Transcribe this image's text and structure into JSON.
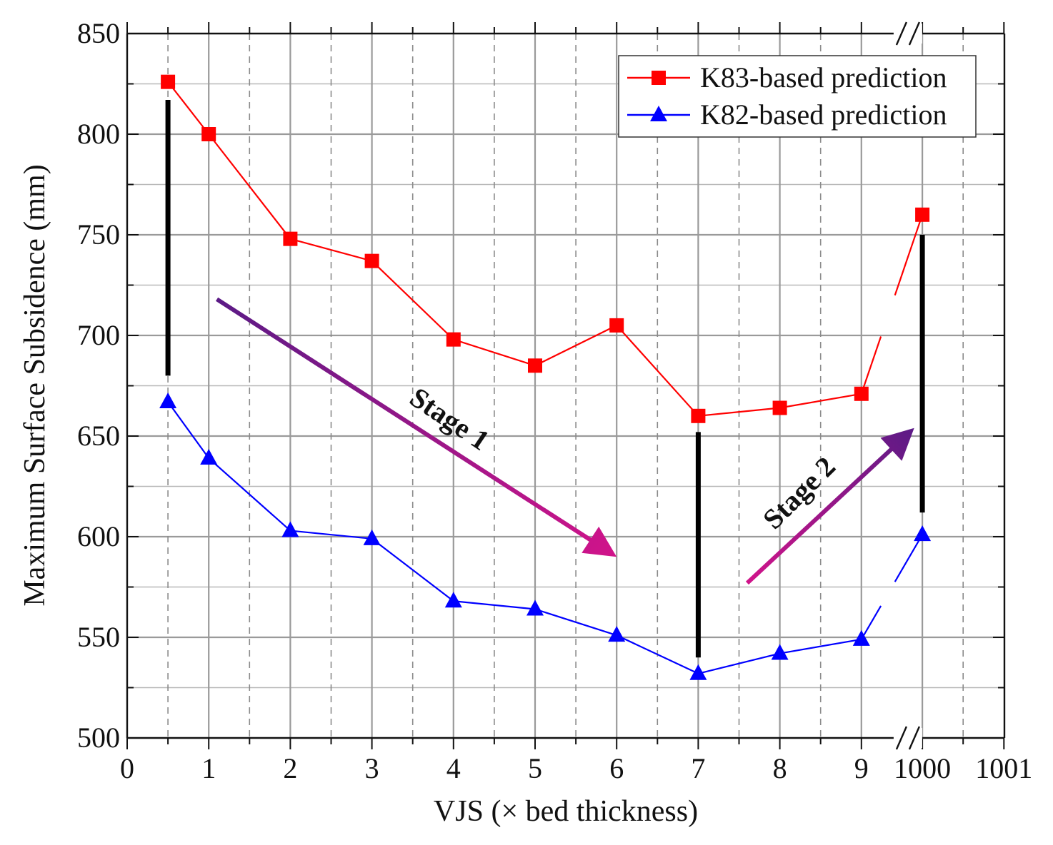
{
  "chart_data": {
    "type": "line",
    "title": "",
    "xlabel": "VJS (× bed thickness)",
    "ylabel": "Maximum Surface Subsidence (mm)",
    "ylim": [
      500,
      850
    ],
    "y_ticks": [
      500,
      550,
      600,
      650,
      700,
      750,
      800,
      850
    ],
    "x_segments": [
      {
        "range": [
          0,
          9.5
        ],
        "tick_labels": [
          "0",
          "1",
          "2",
          "3",
          "4",
          "5",
          "6",
          "7",
          "8",
          "9"
        ]
      },
      {
        "range": [
          999.6,
          1001
        ],
        "tick_labels": [
          "1000",
          "1001"
        ]
      }
    ],
    "axis_break": "between 9 and 1000",
    "grid": true,
    "legend_position": "top-right",
    "series": [
      {
        "name": "K83-based prediction",
        "color": "#ff0000",
        "marker": "square",
        "x": [
          0.5,
          1,
          2,
          3,
          4,
          5,
          6,
          7,
          8,
          9,
          1000
        ],
        "values": [
          826,
          800,
          748,
          737,
          698,
          685,
          705,
          660,
          664,
          671,
          760
        ]
      },
      {
        "name": "K82-based prediction",
        "color": "#0000ff",
        "marker": "triangle",
        "x": [
          0.5,
          1,
          2,
          3,
          4,
          5,
          6,
          7,
          8,
          9,
          1000
        ],
        "values": [
          667,
          639,
          603,
          599,
          568,
          564,
          551,
          532,
          542,
          549,
          601
        ]
      }
    ],
    "annotations": [
      {
        "type": "bar",
        "x": 0.5,
        "from": 680,
        "to": 817,
        "color": "#000000"
      },
      {
        "type": "bar",
        "x": 7,
        "from": 540,
        "to": 652,
        "color": "#000000"
      },
      {
        "type": "bar",
        "x": 1000,
        "from": 612,
        "to": 750,
        "color": "#000000"
      },
      {
        "type": "arrow",
        "label": "Stage 1",
        "from": [
          1.1,
          718
        ],
        "to": [
          6.0,
          590
        ],
        "color_start": "#5b1a86",
        "color_end": "#d1148a"
      },
      {
        "type": "arrow",
        "label": "Stage 2",
        "from": [
          7.6,
          577
        ],
        "to": [
          999.9,
          654
        ],
        "color_start": "#d1148a",
        "color_end": "#5b1a86"
      }
    ]
  }
}
